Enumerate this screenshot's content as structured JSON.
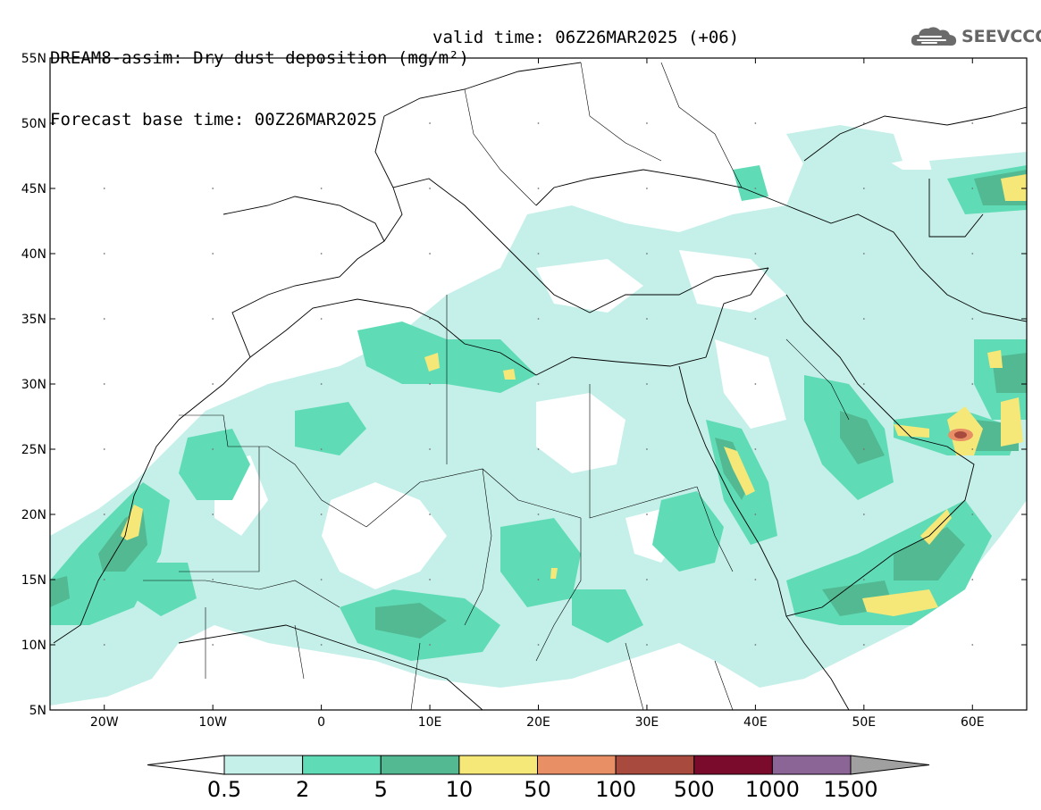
{
  "title": {
    "line1": "DREAM8-assim: Dry dust deposition (mg/m²)",
    "line2": "Forecast base time: 00Z26MAR2025",
    "valid": "valid time: 06Z26MAR2025 (+06)"
  },
  "logo": {
    "text": "SEEVCCC",
    "icon": "cloud-icon"
  },
  "map": {
    "lon_range": [
      -25,
      65
    ],
    "lat_range": [
      5,
      55
    ],
    "lat_ticks": [
      "5N",
      "10N",
      "15N",
      "20N",
      "25N",
      "30N",
      "35N",
      "40N",
      "45N",
      "50N",
      "55N"
    ],
    "lon_ticks": [
      "20W",
      "10W",
      "0",
      "10E",
      "20E",
      "30E",
      "40E",
      "50E",
      "60E"
    ]
  },
  "colorbar": {
    "labels": [
      "0.5",
      "2",
      "5",
      "10",
      "50",
      "100",
      "500",
      "1000",
      "1500"
    ],
    "colors": [
      "#c4f0e9",
      "#5fdcb6",
      "#52b993",
      "#f5e879",
      "#e98f65",
      "#a84a3d",
      "#7b0b2c",
      "#8c6597"
    ],
    "under_color": "#ffffff",
    "over_color": "#a0a0a0"
  }
}
